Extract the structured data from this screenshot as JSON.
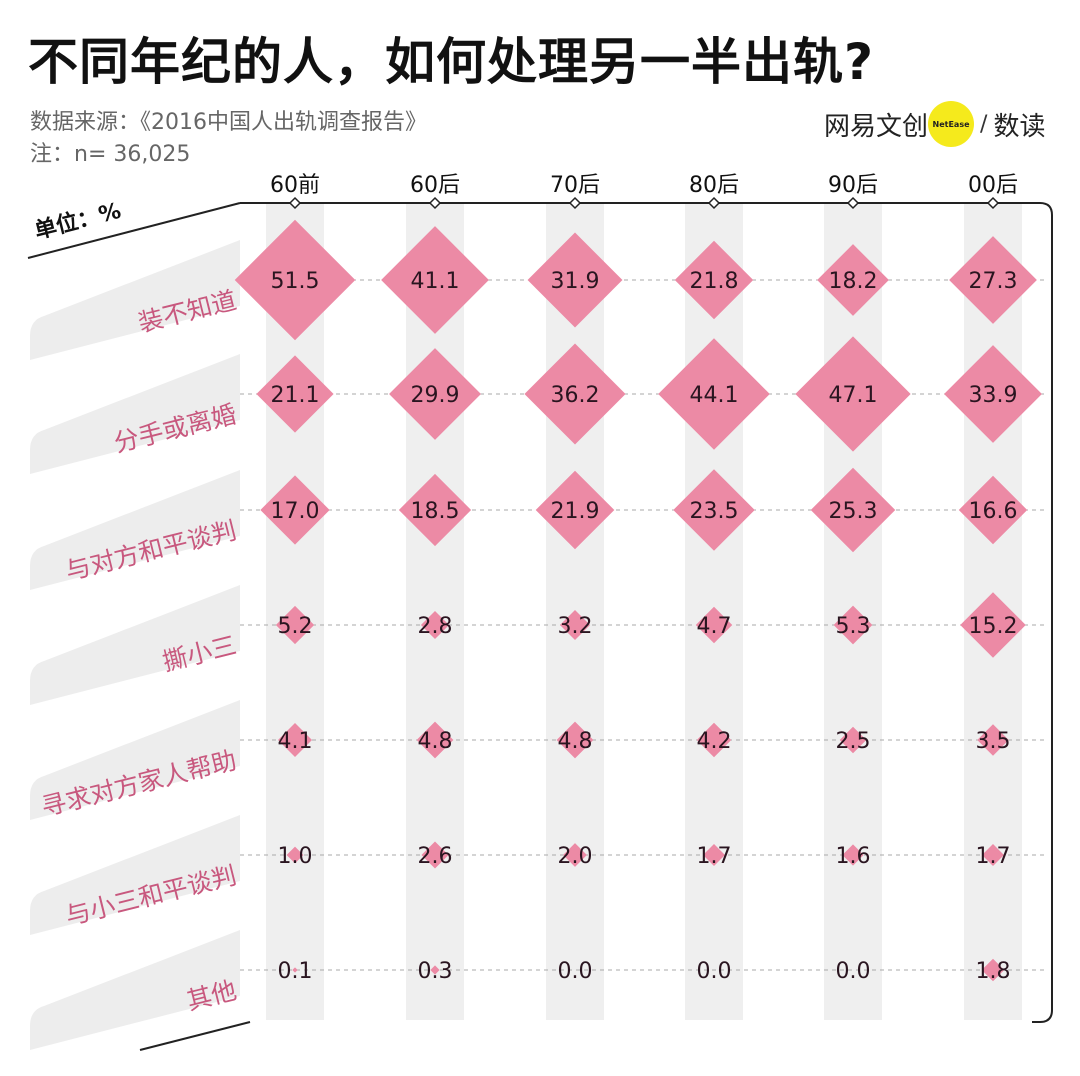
{
  "title": "不同年纪的人，如何处理另一半出轨?",
  "source": "数据来源：《2016中国人出轨调查报告》",
  "note": "注：n= 36,025",
  "logo": {
    "left": "网易文创",
    "badge": "NetEase",
    "slash": "/",
    "right": "数读"
  },
  "colors": {
    "diamond": "#ec8aa5",
    "row_label": "#c8587e",
    "column_band": "#efefef",
    "label_band": "#ededed"
  },
  "chart_data": {
    "type": "table",
    "unit_label": "单位：%",
    "columns": [
      "60前",
      "60后",
      "70后",
      "80后",
      "90后",
      "00后"
    ],
    "rows": [
      "装不知道",
      "分手或离婚",
      "与对方和平谈判",
      "撕小三",
      "寻求对方家人帮助",
      "与小三和平谈判",
      "其他"
    ],
    "values": [
      [
        51.5,
        41.1,
        31.9,
        21.8,
        18.2,
        27.3
      ],
      [
        21.1,
        29.9,
        36.2,
        44.1,
        47.1,
        33.9
      ],
      [
        17.0,
        18.5,
        21.9,
        23.5,
        25.3,
        16.6
      ],
      [
        5.2,
        2.8,
        3.2,
        4.7,
        5.3,
        15.2
      ],
      [
        4.1,
        4.8,
        4.8,
        4.2,
        2.5,
        3.5
      ],
      [
        1.0,
        2.6,
        2.0,
        1.7,
        1.6,
        1.7
      ],
      [
        0.1,
        0.3,
        0.0,
        0.0,
        0.0,
        1.8
      ]
    ],
    "value_labels": [
      [
        "51.5",
        "41.1",
        "31.9",
        "21.8",
        "18.2",
        "27.3"
      ],
      [
        "21.1",
        "29.9",
        "36.2",
        "44.1",
        "47.1",
        "33.9"
      ],
      [
        "17.0",
        "18.5",
        "21.9",
        "23.5",
        "25.3",
        "16.6"
      ],
      [
        "5.2",
        "2.8",
        "3.2",
        "4.7",
        "5.3",
        "15.2"
      ],
      [
        "4.1",
        "4.8",
        "4.8",
        "4.2",
        "2.5",
        "3.5"
      ],
      [
        "1.0",
        "2.6",
        "2.0",
        "1.7",
        "1.6",
        "1.7"
      ],
      [
        "0.1",
        "0.3",
        "0.0",
        "0.0",
        "0.0",
        "1.8"
      ]
    ]
  }
}
